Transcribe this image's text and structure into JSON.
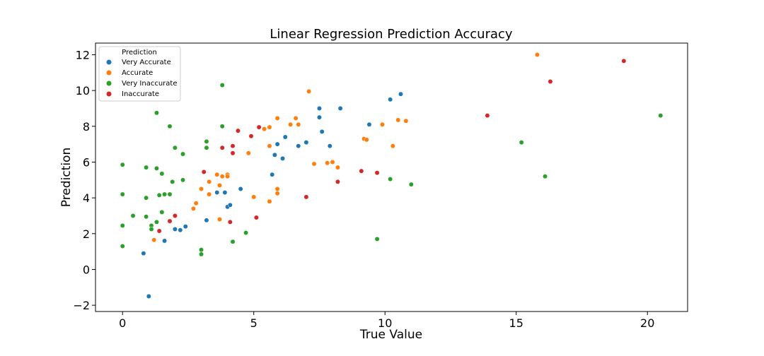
{
  "chart_data": {
    "type": "scatter",
    "title": "Linear Regression Prediction Accuracy",
    "xlabel": "True Value",
    "ylabel": "Prediction",
    "xlim": [
      -1.03,
      21.53
    ],
    "ylim": [
      -2.35,
      12.65
    ],
    "xticks": [
      0,
      5,
      10,
      15,
      20
    ],
    "yticks": [
      -2,
      0,
      2,
      4,
      6,
      8,
      10,
      12
    ],
    "grid": false,
    "legend": {
      "title": "Prediction",
      "placement": "top-left"
    },
    "series": [
      {
        "name": "Very Accurate",
        "color": "#1f77b4",
        "points": [
          [
            1.0,
            -1.5
          ],
          [
            0.8,
            0.9
          ],
          [
            1.6,
            1.6
          ],
          [
            2.0,
            2.25
          ],
          [
            2.2,
            2.2
          ],
          [
            2.4,
            2.4
          ],
          [
            3.2,
            2.75
          ],
          [
            3.6,
            4.3
          ],
          [
            3.9,
            4.3
          ],
          [
            4.0,
            3.5
          ],
          [
            4.1,
            3.6
          ],
          [
            4.5,
            4.5
          ],
          [
            5.7,
            5.3
          ],
          [
            5.8,
            6.4
          ],
          [
            5.9,
            7.0
          ],
          [
            6.1,
            6.2
          ],
          [
            6.2,
            7.4
          ],
          [
            6.7,
            6.9
          ],
          [
            7.0,
            7.1
          ],
          [
            7.5,
            8.5
          ],
          [
            7.5,
            9.0
          ],
          [
            7.6,
            7.7
          ],
          [
            7.9,
            6.9
          ],
          [
            8.3,
            9.0
          ],
          [
            9.4,
            8.1
          ],
          [
            10.2,
            9.5
          ],
          [
            10.6,
            9.8
          ]
        ]
      },
      {
        "name": "Accurate",
        "color": "#ff7f0e",
        "points": [
          [
            1.2,
            1.65
          ],
          [
            2.7,
            3.4
          ],
          [
            2.8,
            3.7
          ],
          [
            3.0,
            4.5
          ],
          [
            3.3,
            4.2
          ],
          [
            3.3,
            4.9
          ],
          [
            3.6,
            5.3
          ],
          [
            3.7,
            4.7
          ],
          [
            3.7,
            2.8
          ],
          [
            3.8,
            5.2
          ],
          [
            4.0,
            5.3
          ],
          [
            4.0,
            5.2
          ],
          [
            4.8,
            6.5
          ],
          [
            5.0,
            4.05
          ],
          [
            5.4,
            7.85
          ],
          [
            5.6,
            7.95
          ],
          [
            5.6,
            6.9
          ],
          [
            5.6,
            3.8
          ],
          [
            5.9,
            8.45
          ],
          [
            5.9,
            4.5
          ],
          [
            5.9,
            4.25
          ],
          [
            6.4,
            8.1
          ],
          [
            6.6,
            8.45
          ],
          [
            6.7,
            8.1
          ],
          [
            7.1,
            9.95
          ],
          [
            7.3,
            5.9
          ],
          [
            7.8,
            5.95
          ],
          [
            8.0,
            6.0
          ],
          [
            8.2,
            5.7
          ],
          [
            9.2,
            7.3
          ],
          [
            9.3,
            7.25
          ],
          [
            9.9,
            8.1
          ],
          [
            10.3,
            6.9
          ],
          [
            10.5,
            8.35
          ],
          [
            10.8,
            8.3
          ],
          [
            15.8,
            12.0
          ]
        ]
      },
      {
        "name": "Very Inaccurate",
        "color": "#2ca02c",
        "points": [
          [
            0.0,
            5.85
          ],
          [
            0.0,
            4.2
          ],
          [
            0.0,
            2.45
          ],
          [
            0.0,
            1.3
          ],
          [
            0.4,
            3.0
          ],
          [
            0.9,
            5.7
          ],
          [
            0.9,
            4.0
          ],
          [
            0.9,
            2.95
          ],
          [
            1.1,
            2.45
          ],
          [
            1.1,
            2.25
          ],
          [
            1.3,
            8.75
          ],
          [
            1.3,
            5.65
          ],
          [
            1.3,
            2.65
          ],
          [
            1.4,
            4.15
          ],
          [
            1.5,
            3.2
          ],
          [
            1.5,
            5.35
          ],
          [
            1.6,
            4.2
          ],
          [
            1.8,
            8.0
          ],
          [
            1.8,
            4.2
          ],
          [
            1.9,
            4.9
          ],
          [
            2.0,
            6.8
          ],
          [
            2.3,
            6.45
          ],
          [
            2.3,
            5.0
          ],
          [
            3.0,
            1.1
          ],
          [
            3.0,
            0.85
          ],
          [
            3.2,
            7.15
          ],
          [
            3.2,
            6.8
          ],
          [
            3.8,
            10.3
          ],
          [
            3.8,
            8.0
          ],
          [
            4.2,
            1.55
          ],
          [
            4.7,
            2.05
          ],
          [
            9.7,
            1.7
          ],
          [
            10.2,
            5.05
          ],
          [
            11.0,
            4.75
          ],
          [
            15.2,
            7.1
          ],
          [
            16.1,
            5.2
          ],
          [
            20.5,
            8.6
          ]
        ]
      },
      {
        "name": "Inaccurate",
        "color": "#d62728",
        "points": [
          [
            1.4,
            2.15
          ],
          [
            1.8,
            2.7
          ],
          [
            2.0,
            3.0
          ],
          [
            3.1,
            5.45
          ],
          [
            3.8,
            6.8
          ],
          [
            4.1,
            2.65
          ],
          [
            4.2,
            6.9
          ],
          [
            4.2,
            6.5
          ],
          [
            4.4,
            7.75
          ],
          [
            4.9,
            7.45
          ],
          [
            5.1,
            2.9
          ],
          [
            5.2,
            7.95
          ],
          [
            7.0,
            4.05
          ],
          [
            8.2,
            4.9
          ],
          [
            9.1,
            5.5
          ],
          [
            9.7,
            5.4
          ],
          [
            13.9,
            8.6
          ],
          [
            16.3,
            10.5
          ],
          [
            19.1,
            11.65
          ]
        ]
      }
    ]
  }
}
